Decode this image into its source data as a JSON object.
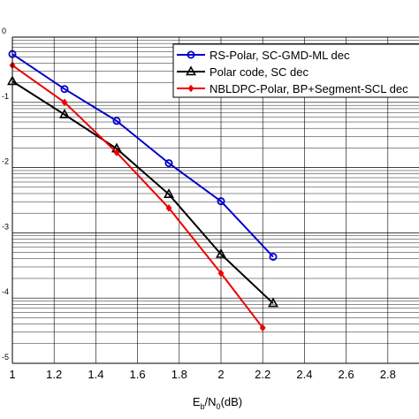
{
  "chart_data": {
    "type": "line",
    "title": "",
    "xlabel_main": "E",
    "xlabel_sub1": "b",
    "xlabel_mid": "/N",
    "xlabel_sub2": "0",
    "xlabel_tail": "(dB)",
    "ylabel": "",
    "x_scale": "linear",
    "y_scale": "log",
    "xlim": [
      1,
      3
    ],
    "ylim_exponent": [
      -5,
      0
    ],
    "x_ticks": [
      "1",
      "1.2",
      "1.4",
      "1.6",
      "1.8",
      "2",
      "2.2",
      "2.4",
      "2.6",
      "2.8"
    ],
    "y_tick_exponents": [
      "0",
      "-1",
      "-2",
      "-3",
      "-4",
      "-5"
    ],
    "grid": true,
    "minor_grid": true,
    "legend_position": "top-right",
    "series": [
      {
        "name": "RS-Polar, SC-GMD-ML dec",
        "color": "#0000cc",
        "marker": "circle",
        "x": [
          1.0,
          1.25,
          1.5,
          1.75,
          2.0,
          2.25
        ],
        "y": [
          0.55,
          0.16,
          0.052,
          0.0117,
          0.00305,
          0.00043
        ]
      },
      {
        "name": "Polar code, SC dec",
        "color": "#000000",
        "marker": "triangle",
        "x": [
          1.0,
          1.25,
          1.5,
          1.75,
          2.0,
          2.25
        ],
        "y": [
          0.21,
          0.065,
          0.0195,
          0.0039,
          0.00047,
          8.3e-05
        ]
      },
      {
        "name": "NBLDPC-Polar, BP+Segment-SCL dec",
        "color": "#ee0000",
        "marker": "diamond",
        "x": [
          1.0,
          1.25,
          1.5,
          1.75,
          2.0,
          2.2
        ],
        "y": [
          0.37,
          0.1,
          0.017,
          0.0024,
          0.00024,
          3.5e-05
        ]
      }
    ]
  }
}
